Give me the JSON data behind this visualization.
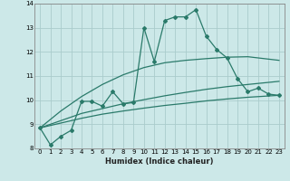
{
  "xlabel": "Humidex (Indice chaleur)",
  "bg_color": "#cce8e8",
  "grid_color": "#aacccc",
  "line_color": "#2a7a6a",
  "xlim": [
    -0.5,
    23.5
  ],
  "ylim": [
    8,
    14
  ],
  "yticks": [
    8,
    9,
    10,
    11,
    12,
    13,
    14
  ],
  "xticks": [
    0,
    1,
    2,
    3,
    4,
    5,
    6,
    7,
    8,
    9,
    10,
    11,
    12,
    13,
    14,
    15,
    16,
    17,
    18,
    19,
    20,
    21,
    22,
    23
  ],
  "line1_x": [
    0,
    1,
    2,
    3,
    4,
    5,
    6,
    7,
    8,
    9,
    10,
    11,
    12,
    13,
    14,
    15,
    16,
    17,
    18,
    19,
    20,
    21,
    22,
    23
  ],
  "line1_y": [
    8.85,
    8.15,
    8.5,
    8.75,
    9.95,
    9.95,
    9.75,
    10.35,
    9.85,
    9.9,
    13.0,
    11.6,
    13.3,
    13.45,
    13.45,
    13.75,
    12.65,
    12.1,
    11.75,
    10.9,
    10.35,
    10.5,
    10.25,
    10.2
  ],
  "curve2_x": [
    0,
    2,
    4,
    6,
    8,
    10,
    12,
    14,
    16,
    18,
    20,
    23
  ],
  "curve2_y": [
    8.85,
    9.05,
    9.25,
    9.42,
    9.55,
    9.67,
    9.78,
    9.87,
    9.97,
    10.05,
    10.12,
    10.2
  ],
  "curve3_x": [
    0,
    2,
    4,
    6,
    8,
    10,
    12,
    14,
    16,
    18,
    20,
    23
  ],
  "curve3_y": [
    8.85,
    9.15,
    9.45,
    9.65,
    9.85,
    10.02,
    10.18,
    10.32,
    10.45,
    10.56,
    10.65,
    10.78
  ],
  "curve4_x": [
    0,
    2,
    4,
    6,
    8,
    10,
    12,
    14,
    16,
    18,
    20,
    23
  ],
  "curve4_y": [
    8.85,
    9.55,
    10.15,
    10.65,
    11.05,
    11.35,
    11.55,
    11.65,
    11.72,
    11.78,
    11.8,
    11.65
  ]
}
